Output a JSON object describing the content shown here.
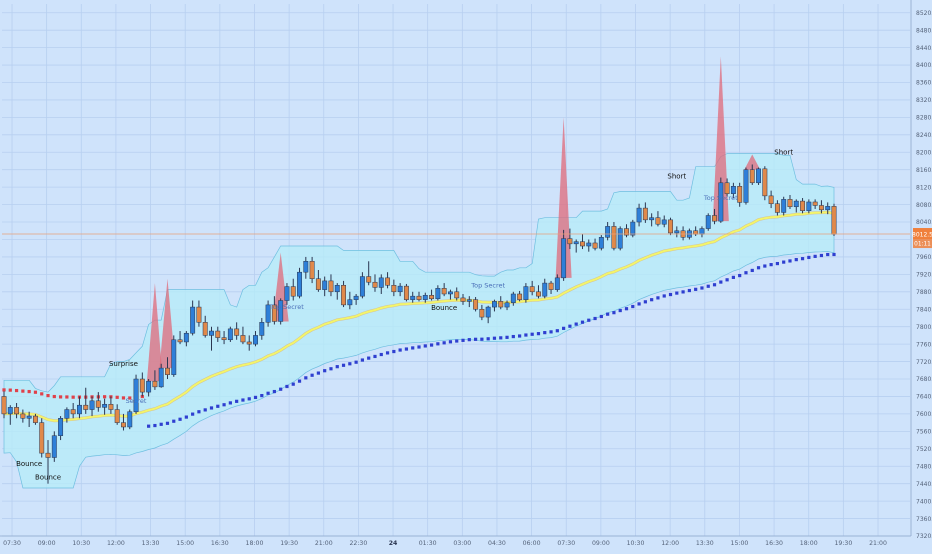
{
  "chart_data": {
    "type": "candlestick",
    "title": "",
    "colors": {
      "background": "#cfe3fb",
      "grid": "#b7cff0",
      "bull": "#2e7fd8",
      "bear": "#e0894a",
      "band_fill": "#b6ecf8",
      "band_edge": "#6fbfe0",
      "ema": "#f3f56a",
      "ema_shadow": "#e6a24a",
      "dots_bull": "#2f3fd0",
      "dots_bear": "#e0414a",
      "spike": "#e06a7a",
      "price_line": "#e9a07a",
      "price_tag": "#f0803c"
    },
    "y_axis": {
      "min": 7320,
      "max": 8540,
      "ticks": [
        "8520.0",
        "8480.0",
        "8440.0",
        "8400.0",
        "8360.0",
        "8320.0",
        "8280.0",
        "8240.0",
        "8200.0",
        "8160.0",
        "8120.0",
        "8080.0",
        "8040.0",
        "8000.0",
        "7960.0",
        "7920.0",
        "7880.0",
        "7840.0",
        "7800.0",
        "7760.0",
        "7720.0",
        "7680.0",
        "7640.0",
        "7600.0",
        "7560.0",
        "7520.0",
        "7480.0",
        "7440.0",
        "7400.0",
        "7360.0",
        "7320.0"
      ],
      "current_price_label": "8012.5",
      "current_price_value": 8012.5,
      "countdown_label": "01:11"
    },
    "x_axis": {
      "labels": [
        "07:30",
        "09:00",
        "10:30",
        "12:00",
        "13:30",
        "15:00",
        "16:30",
        "18:00",
        "19:30",
        "21:00",
        "22:30",
        "24",
        "01:30",
        "03:00",
        "04:30",
        "06:00",
        "07:30",
        "09:00",
        "10:30",
        "12:00",
        "13:30",
        "15:00",
        "16:30",
        "18:00",
        "19:30",
        "21:00"
      ]
    },
    "annotations": [
      "Bounce",
      "Bounce",
      "Surprise",
      "Secret",
      "Top Secret",
      "Bounce",
      "Top Secret",
      "Short",
      "Top Secret",
      "Short"
    ],
    "candles": [
      {
        "o": 7640,
        "h": 7652,
        "l": 7590,
        "c": 7600
      },
      {
        "o": 7600,
        "h": 7620,
        "l": 7575,
        "c": 7615
      },
      {
        "o": 7615,
        "h": 7625,
        "l": 7590,
        "c": 7600
      },
      {
        "o": 7600,
        "h": 7610,
        "l": 7580,
        "c": 7590
      },
      {
        "o": 7590,
        "h": 7605,
        "l": 7570,
        "c": 7595
      },
      {
        "o": 7595,
        "h": 7600,
        "l": 7575,
        "c": 7580
      },
      {
        "o": 7580,
        "h": 7590,
        "l": 7500,
        "c": 7510
      },
      {
        "o": 7510,
        "h": 7540,
        "l": 7440,
        "c": 7500
      },
      {
        "o": 7500,
        "h": 7560,
        "l": 7490,
        "c": 7550
      },
      {
        "o": 7550,
        "h": 7595,
        "l": 7540,
        "c": 7590
      },
      {
        "o": 7590,
        "h": 7615,
        "l": 7580,
        "c": 7610
      },
      {
        "o": 7610,
        "h": 7625,
        "l": 7590,
        "c": 7600
      },
      {
        "o": 7600,
        "h": 7640,
        "l": 7590,
        "c": 7620
      },
      {
        "o": 7620,
        "h": 7660,
        "l": 7600,
        "c": 7610
      },
      {
        "o": 7610,
        "h": 7640,
        "l": 7595,
        "c": 7630
      },
      {
        "o": 7630,
        "h": 7650,
        "l": 7605,
        "c": 7615
      },
      {
        "o": 7615,
        "h": 7635,
        "l": 7598,
        "c": 7622
      },
      {
        "o": 7622,
        "h": 7640,
        "l": 7600,
        "c": 7610
      },
      {
        "o": 7610,
        "h": 7622,
        "l": 7575,
        "c": 7580
      },
      {
        "o": 7580,
        "h": 7600,
        "l": 7562,
        "c": 7570
      },
      {
        "o": 7570,
        "h": 7610,
        "l": 7565,
        "c": 7605
      },
      {
        "o": 7605,
        "h": 7690,
        "l": 7600,
        "c": 7680
      },
      {
        "o": 7680,
        "h": 7695,
        "l": 7640,
        "c": 7650
      },
      {
        "o": 7650,
        "h": 7680,
        "l": 7640,
        "c": 7675
      },
      {
        "o": 7675,
        "h": 7700,
        "l": 7655,
        "c": 7662
      },
      {
        "o": 7662,
        "h": 7715,
        "l": 7660,
        "c": 7705
      },
      {
        "o": 7705,
        "h": 7730,
        "l": 7680,
        "c": 7690
      },
      {
        "o": 7690,
        "h": 7780,
        "l": 7685,
        "c": 7770
      },
      {
        "o": 7770,
        "h": 7790,
        "l": 7760,
        "c": 7765
      },
      {
        "o": 7765,
        "h": 7790,
        "l": 7755,
        "c": 7785
      },
      {
        "o": 7785,
        "h": 7860,
        "l": 7780,
        "c": 7845
      },
      {
        "o": 7845,
        "h": 7860,
        "l": 7800,
        "c": 7810
      },
      {
        "o": 7810,
        "h": 7825,
        "l": 7775,
        "c": 7780
      },
      {
        "o": 7780,
        "h": 7800,
        "l": 7745,
        "c": 7790
      },
      {
        "o": 7790,
        "h": 7800,
        "l": 7765,
        "c": 7775
      },
      {
        "o": 7775,
        "h": 7790,
        "l": 7760,
        "c": 7770
      },
      {
        "o": 7770,
        "h": 7800,
        "l": 7765,
        "c": 7795
      },
      {
        "o": 7795,
        "h": 7810,
        "l": 7770,
        "c": 7780
      },
      {
        "o": 7780,
        "h": 7800,
        "l": 7760,
        "c": 7765
      },
      {
        "o": 7765,
        "h": 7780,
        "l": 7745,
        "c": 7760
      },
      {
        "o": 7760,
        "h": 7790,
        "l": 7755,
        "c": 7780
      },
      {
        "o": 7780,
        "h": 7820,
        "l": 7770,
        "c": 7810
      },
      {
        "o": 7810,
        "h": 7860,
        "l": 7800,
        "c": 7850
      },
      {
        "o": 7850,
        "h": 7870,
        "l": 7805,
        "c": 7812
      },
      {
        "o": 7812,
        "h": 7865,
        "l": 7805,
        "c": 7860
      },
      {
        "o": 7860,
        "h": 7900,
        "l": 7850,
        "c": 7892
      },
      {
        "o": 7892,
        "h": 7910,
        "l": 7860,
        "c": 7870
      },
      {
        "o": 7870,
        "h": 7935,
        "l": 7865,
        "c": 7925
      },
      {
        "o": 7925,
        "h": 7960,
        "l": 7910,
        "c": 7950
      },
      {
        "o": 7950,
        "h": 7960,
        "l": 7900,
        "c": 7910
      },
      {
        "o": 7910,
        "h": 7930,
        "l": 7880,
        "c": 7885
      },
      {
        "o": 7885,
        "h": 7915,
        "l": 7870,
        "c": 7905
      },
      {
        "o": 7905,
        "h": 7920,
        "l": 7870,
        "c": 7880
      },
      {
        "o": 7880,
        "h": 7900,
        "l": 7862,
        "c": 7895
      },
      {
        "o": 7895,
        "h": 7905,
        "l": 7845,
        "c": 7850
      },
      {
        "o": 7850,
        "h": 7880,
        "l": 7840,
        "c": 7862
      },
      {
        "o": 7862,
        "h": 7875,
        "l": 7850,
        "c": 7870
      },
      {
        "o": 7870,
        "h": 7925,
        "l": 7865,
        "c": 7915
      },
      {
        "o": 7915,
        "h": 7950,
        "l": 7895,
        "c": 7902
      },
      {
        "o": 7902,
        "h": 7920,
        "l": 7880,
        "c": 7890
      },
      {
        "o": 7890,
        "h": 7920,
        "l": 7875,
        "c": 7912
      },
      {
        "o": 7912,
        "h": 7925,
        "l": 7888,
        "c": 7895
      },
      {
        "o": 7895,
        "h": 7908,
        "l": 7870,
        "c": 7880
      },
      {
        "o": 7880,
        "h": 7900,
        "l": 7870,
        "c": 7893
      },
      {
        "o": 7893,
        "h": 7898,
        "l": 7858,
        "c": 7862
      },
      {
        "o": 7862,
        "h": 7880,
        "l": 7855,
        "c": 7870
      },
      {
        "o": 7870,
        "h": 7880,
        "l": 7858,
        "c": 7862
      },
      {
        "o": 7862,
        "h": 7878,
        "l": 7855,
        "c": 7872
      },
      {
        "o": 7872,
        "h": 7885,
        "l": 7860,
        "c": 7864
      },
      {
        "o": 7864,
        "h": 7895,
        "l": 7860,
        "c": 7888
      },
      {
        "o": 7888,
        "h": 7900,
        "l": 7870,
        "c": 7875
      },
      {
        "o": 7875,
        "h": 7885,
        "l": 7862,
        "c": 7880
      },
      {
        "o": 7880,
        "h": 7890,
        "l": 7860,
        "c": 7866
      },
      {
        "o": 7866,
        "h": 7875,
        "l": 7850,
        "c": 7858
      },
      {
        "o": 7858,
        "h": 7870,
        "l": 7845,
        "c": 7862
      },
      {
        "o": 7862,
        "h": 7868,
        "l": 7835,
        "c": 7840
      },
      {
        "o": 7840,
        "h": 7850,
        "l": 7815,
        "c": 7822
      },
      {
        "o": 7822,
        "h": 7848,
        "l": 7808,
        "c": 7845
      },
      {
        "o": 7845,
        "h": 7862,
        "l": 7835,
        "c": 7858
      },
      {
        "o": 7858,
        "h": 7870,
        "l": 7840,
        "c": 7845
      },
      {
        "o": 7845,
        "h": 7860,
        "l": 7838,
        "c": 7855
      },
      {
        "o": 7855,
        "h": 7880,
        "l": 7848,
        "c": 7875
      },
      {
        "o": 7875,
        "h": 7882,
        "l": 7858,
        "c": 7862
      },
      {
        "o": 7862,
        "h": 7900,
        "l": 7855,
        "c": 7892
      },
      {
        "o": 7892,
        "h": 7905,
        "l": 7872,
        "c": 7880
      },
      {
        "o": 7880,
        "h": 7895,
        "l": 7865,
        "c": 7870
      },
      {
        "o": 7870,
        "h": 7910,
        "l": 7865,
        "c": 7900
      },
      {
        "o": 7900,
        "h": 7905,
        "l": 7875,
        "c": 7885
      },
      {
        "o": 7885,
        "h": 7920,
        "l": 7880,
        "c": 7912
      },
      {
        "o": 7912,
        "h": 8022,
        "l": 7905,
        "c": 8002
      },
      {
        "o": 8002,
        "h": 8025,
        "l": 7978,
        "c": 7990
      },
      {
        "o": 7990,
        "h": 8000,
        "l": 7970,
        "c": 7995
      },
      {
        "o": 7995,
        "h": 8012,
        "l": 7978,
        "c": 7985
      },
      {
        "o": 7985,
        "h": 8000,
        "l": 7972,
        "c": 7992
      },
      {
        "o": 7992,
        "h": 8002,
        "l": 7975,
        "c": 7980
      },
      {
        "o": 7980,
        "h": 8010,
        "l": 7975,
        "c": 8005
      },
      {
        "o": 8005,
        "h": 8040,
        "l": 7998,
        "c": 8030
      },
      {
        "o": 8030,
        "h": 8040,
        "l": 7975,
        "c": 7980
      },
      {
        "o": 7980,
        "h": 8030,
        "l": 7975,
        "c": 8025
      },
      {
        "o": 8025,
        "h": 8035,
        "l": 8005,
        "c": 8010
      },
      {
        "o": 8010,
        "h": 8045,
        "l": 8005,
        "c": 8040
      },
      {
        "o": 8040,
        "h": 8082,
        "l": 8030,
        "c": 8072
      },
      {
        "o": 8072,
        "h": 8085,
        "l": 8038,
        "c": 8045
      },
      {
        "o": 8045,
        "h": 8060,
        "l": 8030,
        "c": 8050
      },
      {
        "o": 8050,
        "h": 8065,
        "l": 8030,
        "c": 8035
      },
      {
        "o": 8035,
        "h": 8055,
        "l": 8028,
        "c": 8045
      },
      {
        "o": 8045,
        "h": 8050,
        "l": 8010,
        "c": 8015
      },
      {
        "o": 8015,
        "h": 8030,
        "l": 8005,
        "c": 8020
      },
      {
        "o": 8020,
        "h": 8030,
        "l": 7998,
        "c": 8005
      },
      {
        "o": 8005,
        "h": 8025,
        "l": 8000,
        "c": 8020
      },
      {
        "o": 8020,
        "h": 8030,
        "l": 8008,
        "c": 8012
      },
      {
        "o": 8012,
        "h": 8030,
        "l": 8005,
        "c": 8025
      },
      {
        "o": 8025,
        "h": 8060,
        "l": 8020,
        "c": 8055
      },
      {
        "o": 8055,
        "h": 8070,
        "l": 8035,
        "c": 8042
      },
      {
        "o": 8042,
        "h": 8142,
        "l": 8038,
        "c": 8130
      },
      {
        "o": 8130,
        "h": 8140,
        "l": 8100,
        "c": 8105
      },
      {
        "o": 8105,
        "h": 8130,
        "l": 8095,
        "c": 8122
      },
      {
        "o": 8122,
        "h": 8130,
        "l": 8075,
        "c": 8085
      },
      {
        "o": 8085,
        "h": 8165,
        "l": 8080,
        "c": 8160
      },
      {
        "o": 8160,
        "h": 8172,
        "l": 8125,
        "c": 8130
      },
      {
        "o": 8130,
        "h": 8165,
        "l": 8125,
        "c": 8162
      },
      {
        "o": 8162,
        "h": 8168,
        "l": 8090,
        "c": 8100
      },
      {
        "o": 8100,
        "h": 8112,
        "l": 8072,
        "c": 8082
      },
      {
        "o": 8082,
        "h": 8090,
        "l": 8055,
        "c": 8062
      },
      {
        "o": 8062,
        "h": 8098,
        "l": 8055,
        "c": 8092
      },
      {
        "o": 8092,
        "h": 8102,
        "l": 8070,
        "c": 8075
      },
      {
        "o": 8075,
        "h": 8092,
        "l": 8062,
        "c": 8088
      },
      {
        "o": 8088,
        "h": 8095,
        "l": 8060,
        "c": 8066
      },
      {
        "o": 8066,
        "h": 8092,
        "l": 8060,
        "c": 8086
      },
      {
        "o": 8086,
        "h": 8092,
        "l": 8070,
        "c": 8078
      },
      {
        "o": 8078,
        "h": 8090,
        "l": 8060,
        "c": 8068
      },
      {
        "o": 8068,
        "h": 8085,
        "l": 8058,
        "c": 8076
      },
      {
        "o": 8076,
        "h": 8082,
        "l": 8008,
        "c": 8012
      }
    ],
    "spikes": [
      {
        "at": 24,
        "top": 7900
      },
      {
        "at": 26,
        "top": 7910
      },
      {
        "at": 44,
        "top": 7970
      },
      {
        "at": 89,
        "top": 8280
      },
      {
        "at": 114,
        "top": 8420
      },
      {
        "at": 119,
        "top": 8195
      }
    ]
  }
}
